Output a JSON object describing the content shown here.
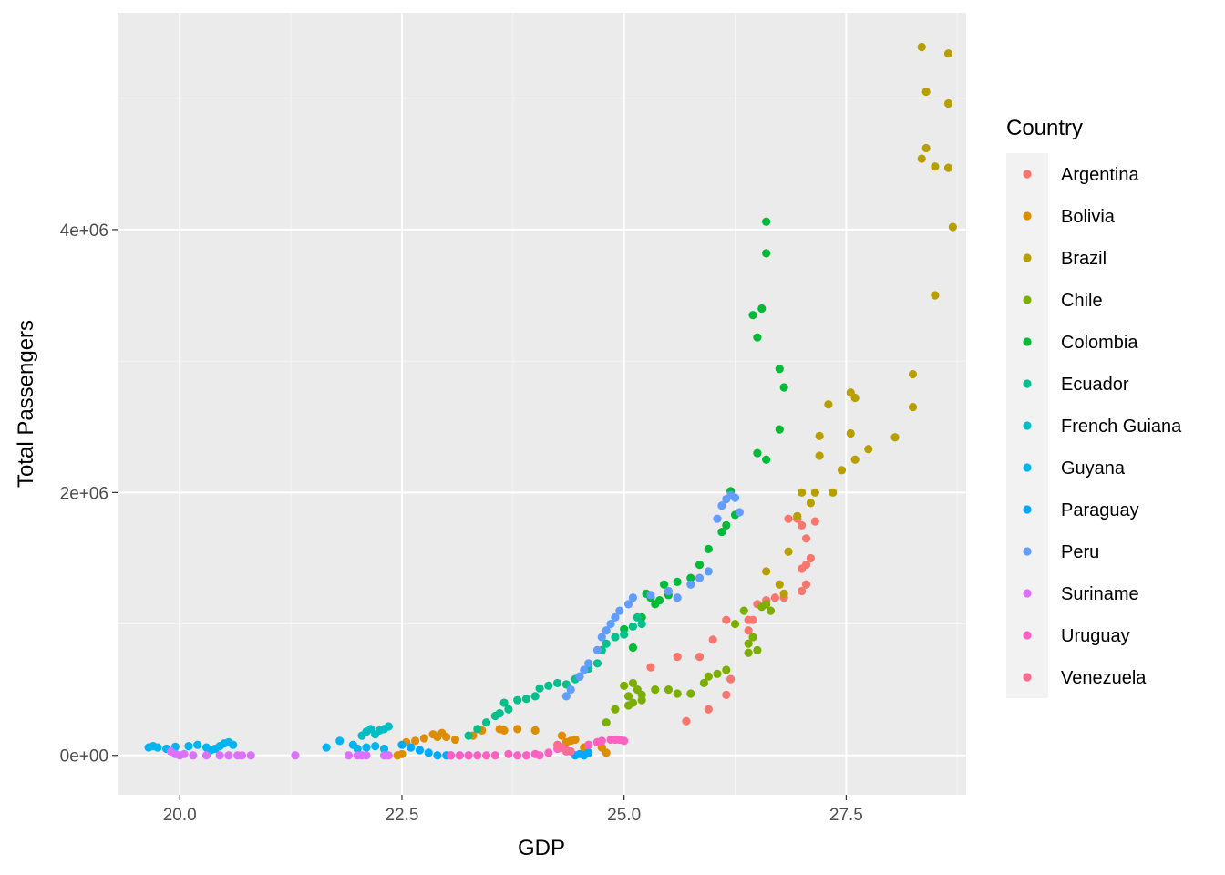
{
  "chart_data": {
    "type": "scatter",
    "xlabel": "GDP",
    "ylabel": "Total Passengers",
    "xlim": [
      19.3,
      28.85
    ],
    "ylim": [
      -300000,
      5650000
    ],
    "xticks": [
      20.0,
      22.5,
      25.0,
      27.5
    ],
    "xtick_labels": [
      "20.0",
      "22.5",
      "25.0",
      "27.5"
    ],
    "yticks": [
      0,
      2000000,
      4000000
    ],
    "ytick_labels": [
      "0e+00",
      "2e+06",
      "4e+06"
    ],
    "grid": true,
    "legend": {
      "title": "Country",
      "position": "right"
    },
    "series": [
      {
        "name": "Argentina",
        "color": "#F8766D",
        "points": [
          [
            25.3,
            670000
          ],
          [
            25.6,
            750000
          ],
          [
            25.7,
            260000
          ],
          [
            25.85,
            750000
          ],
          [
            25.95,
            350000
          ],
          [
            26.0,
            880000
          ],
          [
            26.15,
            1030000
          ],
          [
            26.15,
            460000
          ],
          [
            26.2,
            580000
          ],
          [
            26.4,
            950000
          ],
          [
            26.4,
            1030000
          ],
          [
            26.45,
            1030000
          ],
          [
            26.5,
            1150000
          ],
          [
            26.6,
            1180000
          ],
          [
            26.7,
            1200000
          ],
          [
            26.8,
            1200000
          ],
          [
            26.85,
            1800000
          ],
          [
            26.95,
            1800000
          ],
          [
            27.0,
            1750000
          ],
          [
            27.0,
            1420000
          ],
          [
            27.0,
            1250000
          ],
          [
            27.05,
            1450000
          ],
          [
            27.05,
            1650000
          ],
          [
            27.05,
            1300000
          ],
          [
            27.1,
            1500000
          ],
          [
            27.15,
            1780000
          ]
        ]
      },
      {
        "name": "Bolivia",
        "color": "#DE8C00",
        "points": [
          [
            22.45,
            0
          ],
          [
            22.5,
            10000
          ],
          [
            22.55,
            100000
          ],
          [
            22.65,
            110000
          ],
          [
            22.75,
            130000
          ],
          [
            22.85,
            160000
          ],
          [
            22.9,
            140000
          ],
          [
            22.95,
            170000
          ],
          [
            23.0,
            140000
          ],
          [
            23.1,
            120000
          ],
          [
            23.3,
            150000
          ],
          [
            23.4,
            190000
          ],
          [
            23.6,
            200000
          ],
          [
            23.65,
            190000
          ],
          [
            23.8,
            200000
          ],
          [
            24.0,
            190000
          ],
          [
            24.3,
            150000
          ],
          [
            24.35,
            100000
          ],
          [
            24.4,
            110000
          ],
          [
            24.45,
            120000
          ],
          [
            24.55,
            60000
          ],
          [
            24.6,
            80000
          ],
          [
            24.7,
            100000
          ],
          [
            24.75,
            60000
          ],
          [
            24.8,
            20000
          ]
        ]
      },
      {
        "name": "Brazil",
        "color": "#B79F00",
        "points": [
          [
            26.6,
            1400000
          ],
          [
            26.75,
            1300000
          ],
          [
            26.8,
            1230000
          ],
          [
            26.85,
            1550000
          ],
          [
            26.95,
            1820000
          ],
          [
            27.0,
            2000000
          ],
          [
            27.1,
            1920000
          ],
          [
            27.15,
            2000000
          ],
          [
            27.2,
            2280000
          ],
          [
            27.2,
            2430000
          ],
          [
            27.3,
            2670000
          ],
          [
            27.35,
            2000000
          ],
          [
            27.45,
            2170000
          ],
          [
            27.55,
            2450000
          ],
          [
            27.55,
            2760000
          ],
          [
            27.6,
            2720000
          ],
          [
            27.6,
            2250000
          ],
          [
            27.75,
            2330000
          ],
          [
            28.05,
            2420000
          ],
          [
            28.25,
            2900000
          ],
          [
            28.25,
            2650000
          ],
          [
            28.35,
            4540000
          ],
          [
            28.35,
            5390000
          ],
          [
            28.4,
            4620000
          ],
          [
            28.4,
            5050000
          ],
          [
            28.5,
            4480000
          ],
          [
            28.5,
            3500000
          ],
          [
            28.65,
            5340000
          ],
          [
            28.65,
            4470000
          ],
          [
            28.65,
            4960000
          ],
          [
            28.7,
            4020000
          ]
        ]
      },
      {
        "name": "Chile",
        "color": "#7CAE00",
        "points": [
          [
            24.8,
            250000
          ],
          [
            24.9,
            350000
          ],
          [
            25.0,
            530000
          ],
          [
            25.05,
            450000
          ],
          [
            25.05,
            380000
          ],
          [
            25.1,
            400000
          ],
          [
            25.1,
            550000
          ],
          [
            25.15,
            500000
          ],
          [
            25.2,
            420000
          ],
          [
            25.2,
            460000
          ],
          [
            25.35,
            500000
          ],
          [
            25.5,
            500000
          ],
          [
            25.6,
            470000
          ],
          [
            25.75,
            470000
          ],
          [
            25.9,
            550000
          ],
          [
            25.95,
            600000
          ],
          [
            26.05,
            620000
          ],
          [
            26.15,
            650000
          ],
          [
            26.25,
            1000000
          ],
          [
            26.35,
            1100000
          ],
          [
            26.4,
            850000
          ],
          [
            26.4,
            780000
          ],
          [
            26.45,
            900000
          ],
          [
            26.5,
            800000
          ],
          [
            26.55,
            1130000
          ],
          [
            26.6,
            1150000
          ],
          [
            26.65,
            1100000
          ]
        ]
      },
      {
        "name": "Colombia",
        "color": "#00BA38",
        "points": [
          [
            25.0,
            960000
          ],
          [
            25.1,
            820000
          ],
          [
            25.2,
            1050000
          ],
          [
            25.25,
            1230000
          ],
          [
            25.3,
            1200000
          ],
          [
            25.35,
            1150000
          ],
          [
            25.4,
            1180000
          ],
          [
            25.45,
            1300000
          ],
          [
            25.5,
            1220000
          ],
          [
            25.6,
            1320000
          ],
          [
            25.75,
            1350000
          ],
          [
            25.85,
            1450000
          ],
          [
            25.95,
            1570000
          ],
          [
            26.1,
            1700000
          ],
          [
            26.15,
            1750000
          ],
          [
            26.2,
            2010000
          ],
          [
            26.25,
            1830000
          ],
          [
            26.45,
            3350000
          ],
          [
            26.5,
            2300000
          ],
          [
            26.5,
            3180000
          ],
          [
            26.55,
            3400000
          ],
          [
            26.6,
            4060000
          ],
          [
            26.6,
            3820000
          ],
          [
            26.6,
            2250000
          ],
          [
            26.75,
            2940000
          ],
          [
            26.75,
            2480000
          ],
          [
            26.8,
            2800000
          ]
        ]
      },
      {
        "name": "Ecuador",
        "color": "#00C08B",
        "points": [
          [
            23.25,
            150000
          ],
          [
            23.35,
            200000
          ],
          [
            23.45,
            250000
          ],
          [
            23.55,
            300000
          ],
          [
            23.6,
            320000
          ],
          [
            23.65,
            400000
          ],
          [
            23.7,
            350000
          ],
          [
            23.8,
            420000
          ],
          [
            23.9,
            430000
          ],
          [
            24.0,
            450000
          ],
          [
            24.05,
            510000
          ],
          [
            24.15,
            530000
          ],
          [
            24.25,
            550000
          ],
          [
            24.35,
            540000
          ],
          [
            24.45,
            580000
          ],
          [
            24.5,
            600000
          ],
          [
            24.6,
            660000
          ],
          [
            24.7,
            700000
          ],
          [
            24.75,
            800000
          ],
          [
            24.8,
            850000
          ],
          [
            24.9,
            900000
          ],
          [
            25.0,
            920000
          ],
          [
            25.1,
            980000
          ],
          [
            25.15,
            1050000
          ],
          [
            25.2,
            1000000
          ]
        ]
      },
      {
        "name": "French Guiana",
        "color": "#00BFC4",
        "points": [
          [
            22.05,
            150000
          ],
          [
            22.1,
            180000
          ],
          [
            22.15,
            200000
          ],
          [
            22.2,
            160000
          ],
          [
            22.25,
            190000
          ],
          [
            22.3,
            200000
          ],
          [
            22.35,
            220000
          ]
        ]
      },
      {
        "name": "Guyana",
        "color": "#00B4F0",
        "points": [
          [
            19.65,
            60000
          ],
          [
            19.7,
            70000
          ],
          [
            19.75,
            60000
          ],
          [
            19.85,
            50000
          ],
          [
            19.95,
            65000
          ],
          [
            20.1,
            70000
          ],
          [
            20.2,
            80000
          ],
          [
            20.3,
            60000
          ],
          [
            20.35,
            40000
          ],
          [
            20.4,
            50000
          ],
          [
            20.45,
            70000
          ],
          [
            20.5,
            90000
          ],
          [
            20.55,
            100000
          ],
          [
            20.6,
            80000
          ],
          [
            21.65,
            60000
          ],
          [
            21.8,
            110000
          ],
          [
            21.95,
            80000
          ],
          [
            22.0,
            50000
          ],
          [
            22.1,
            60000
          ],
          [
            22.2,
            70000
          ],
          [
            22.3,
            50000
          ]
        ]
      },
      {
        "name": "Paraguay",
        "color": "#00A9FF",
        "points": [
          [
            22.5,
            80000
          ],
          [
            22.6,
            60000
          ],
          [
            22.7,
            40000
          ],
          [
            22.8,
            20000
          ],
          [
            22.9,
            0
          ],
          [
            23.0,
            0
          ],
          [
            23.05,
            0
          ],
          [
            23.15,
            0
          ],
          [
            23.25,
            0
          ],
          [
            24.45,
            0
          ],
          [
            24.5,
            10000
          ],
          [
            24.55,
            0
          ],
          [
            24.6,
            20000
          ]
        ]
      },
      {
        "name": "Peru",
        "color": "#619CFF",
        "points": [
          [
            24.35,
            450000
          ],
          [
            24.4,
            500000
          ],
          [
            24.5,
            600000
          ],
          [
            24.55,
            650000
          ],
          [
            24.6,
            700000
          ],
          [
            24.7,
            800000
          ],
          [
            24.75,
            900000
          ],
          [
            24.8,
            950000
          ],
          [
            24.85,
            1000000
          ],
          [
            24.9,
            1050000
          ],
          [
            24.95,
            1100000
          ],
          [
            25.05,
            1150000
          ],
          [
            25.1,
            1200000
          ],
          [
            25.3,
            1220000
          ],
          [
            25.5,
            1250000
          ],
          [
            25.6,
            1200000
          ],
          [
            25.75,
            1300000
          ],
          [
            25.85,
            1350000
          ],
          [
            25.95,
            1400000
          ],
          [
            26.05,
            1800000
          ],
          [
            26.1,
            1900000
          ],
          [
            26.15,
            1950000
          ],
          [
            26.2,
            1980000
          ],
          [
            26.25,
            1960000
          ],
          [
            26.3,
            1850000
          ]
        ]
      },
      {
        "name": "Suriname",
        "color": "#DB72FB",
        "points": [
          [
            19.9,
            30000
          ],
          [
            19.95,
            10000
          ],
          [
            20.0,
            0
          ],
          [
            20.05,
            10000
          ],
          [
            20.15,
            0
          ],
          [
            20.3,
            0
          ],
          [
            20.45,
            0
          ],
          [
            20.55,
            0
          ],
          [
            20.65,
            0
          ],
          [
            20.7,
            0
          ],
          [
            20.8,
            0
          ],
          [
            21.3,
            0
          ],
          [
            21.9,
            0
          ],
          [
            22.0,
            0
          ],
          [
            22.05,
            0
          ],
          [
            22.1,
            0
          ],
          [
            22.3,
            0
          ],
          [
            22.35,
            0
          ]
        ]
      },
      {
        "name": "Uruguay",
        "color": "#FF61C3",
        "points": [
          [
            23.05,
            0
          ],
          [
            23.15,
            0
          ],
          [
            23.25,
            0
          ],
          [
            23.35,
            0
          ],
          [
            23.45,
            0
          ],
          [
            23.55,
            0
          ],
          [
            23.7,
            10000
          ],
          [
            23.8,
            0
          ],
          [
            23.9,
            0
          ],
          [
            24.0,
            10000
          ],
          [
            24.05,
            0
          ],
          [
            24.15,
            20000
          ],
          [
            24.25,
            50000
          ],
          [
            24.3,
            60000
          ],
          [
            24.35,
            30000
          ],
          [
            24.6,
            80000
          ],
          [
            24.7,
            100000
          ],
          [
            24.75,
            110000
          ],
          [
            24.85,
            120000
          ],
          [
            24.9,
            120000
          ],
          [
            24.95,
            120000
          ],
          [
            25.0,
            110000
          ]
        ]
      },
      {
        "name": "Venezuela",
        "color": "#FF6C91",
        "points": [
          [
            24.25,
            80000
          ],
          [
            24.3,
            60000
          ],
          [
            24.35,
            40000
          ],
          [
            24.4,
            30000
          ]
        ]
      }
    ]
  }
}
